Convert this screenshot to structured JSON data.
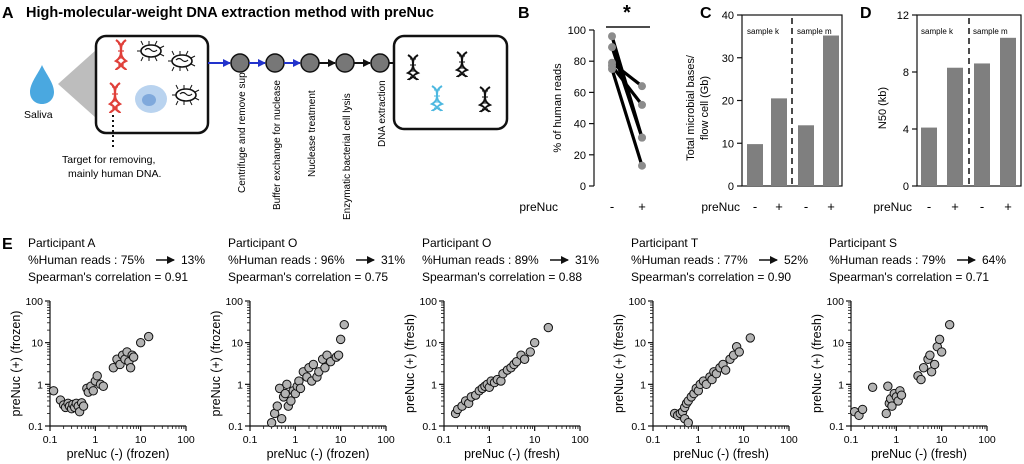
{
  "panelA": {
    "letter": "A",
    "title": "High-molecular-weight DNA extraction method with preNuc",
    "saliva_label": "Saliva",
    "target_label_1": "Target for removing,",
    "target_label_2": "mainly human DNA.",
    "steps": [
      "Centrifuge and remove sup.",
      "Buffer exchange for nuclease",
      "Nuclease treatment",
      "Enzymatic bacterial cell lysis",
      "DNA extraction"
    ],
    "colors": {
      "human_dna": "#e0403a",
      "blue_dna": "#4db8e0",
      "arrow_blue": "#2233cc",
      "node": "#777777",
      "drop": "#4aa8e0"
    }
  },
  "panelB": {
    "letter": "B",
    "significance": "*",
    "ylabel": "% of human reads",
    "xaxis_label": "preNuc",
    "xticks": [
      "-",
      "+"
    ]
  },
  "panelC": {
    "letter": "C",
    "ylabel_1": "Total microbial bases/",
    "ylabel_2": "flow cell (Gb)",
    "xaxis_label": "preNuc",
    "xticks": [
      "-",
      "+",
      "-",
      "+"
    ],
    "groups": [
      "sample k",
      "sample m"
    ]
  },
  "panelD": {
    "letter": "D",
    "ylabel": "N50 (kb)",
    "xaxis_label": "preNuc",
    "xticks": [
      "-",
      "+",
      "-",
      "+"
    ],
    "groups": [
      "sample k",
      "sample m"
    ]
  },
  "panelE": {
    "letter": "E",
    "plots": [
      {
        "participant": "Participant A",
        "reads_before": "%Human reads : 75%",
        "reads_after": "13%",
        "corr": "Spearman's correlation = 0.91",
        "xlabel": "preNuc (-) (frozen)",
        "ylabel": "preNuc (+) (frozen)"
      },
      {
        "participant": "Participant O",
        "reads_before": "%Human reads : 96%",
        "reads_after": "31%",
        "corr": "Spearman's correlation = 0.75",
        "xlabel": "preNuc (-) (frozen)",
        "ylabel": "preNuc (+) (frozen)"
      },
      {
        "participant": "Participant O",
        "reads_before": "%Human reads : 89%",
        "reads_after": "31%",
        "corr": "Spearman's correlation = 0.88",
        "xlabel": "preNuc (-) (fresh)",
        "ylabel": "preNuc (+) (fresh)"
      },
      {
        "participant": "Participant T",
        "reads_before": "%Human reads : 77%",
        "reads_after": "52%",
        "corr": "Spearman's correlation = 0.90",
        "xlabel": "preNuc (-) (fresh)",
        "ylabel": "preNuc (+) (fresh)"
      },
      {
        "participant": "Participant S",
        "reads_before": "%Human reads : 79%",
        "reads_after": "64%",
        "corr": "Spearman's correlation = 0.71",
        "xlabel": "preNuc (-) (fresh)",
        "ylabel": "preNuc (+) (fresh)"
      }
    ]
  },
  "chart_data": [
    {
      "type": "line",
      "panel": "B",
      "ylabel": "% of human reads",
      "xlabel": "preNuc",
      "categories": [
        "-",
        "+"
      ],
      "ylim": [
        0,
        100
      ],
      "yticks": [
        0,
        20,
        40,
        60,
        80,
        100
      ],
      "series": [
        {
          "values": [
            96,
            31
          ]
        },
        {
          "values": [
            89,
            31
          ]
        },
        {
          "values": [
            79,
            64
          ]
        },
        {
          "values": [
            77,
            52
          ]
        },
        {
          "values": [
            75,
            13
          ]
        }
      ],
      "annotation": "*"
    },
    {
      "type": "bar",
      "panel": "C",
      "ylabel": "Total microbial bases/ flow cell (Gb)",
      "xlabel": "preNuc",
      "categories": [
        "-",
        "+",
        "-",
        "+"
      ],
      "groups": [
        "sample k",
        "sample m"
      ],
      "values": [
        9.8,
        20.5,
        14.2,
        35.2
      ],
      "ylim": [
        0,
        40
      ],
      "yticks": [
        0,
        10,
        20,
        30,
        40
      ]
    },
    {
      "type": "bar",
      "panel": "D",
      "ylabel": "N50 (kb)",
      "xlabel": "preNuc",
      "categories": [
        "-",
        "+",
        "-",
        "+"
      ],
      "groups": [
        "sample k",
        "sample m"
      ],
      "values": [
        4.1,
        8.3,
        8.6,
        10.4
      ],
      "ylim": [
        0,
        12
      ],
      "yticks": [
        0,
        4,
        8,
        12
      ]
    },
    {
      "type": "scatter",
      "panel": "E",
      "scale": "log",
      "xlabel": "preNuc (-) (frozen)",
      "ylabel": "preNuc (+) (frozen)",
      "xlim": [
        0.1,
        100
      ],
      "ylim": [
        0.1,
        100
      ],
      "ticks": [
        "0.1",
        "1",
        "10",
        "100"
      ],
      "points": [
        [
          0.12,
          0.7
        ],
        [
          0.17,
          0.42
        ],
        [
          0.2,
          0.32
        ],
        [
          0.22,
          0.28
        ],
        [
          0.25,
          0.35
        ],
        [
          0.27,
          0.3
        ],
        [
          0.3,
          0.26
        ],
        [
          0.32,
          0.33
        ],
        [
          0.35,
          0.28
        ],
        [
          0.38,
          0.35
        ],
        [
          0.42,
          0.3
        ],
        [
          0.45,
          0.22
        ],
        [
          0.5,
          0.36
        ],
        [
          0.55,
          0.3
        ],
        [
          0.65,
          0.8
        ],
        [
          0.7,
          0.65
        ],
        [
          0.8,
          0.9
        ],
        [
          0.9,
          0.7
        ],
        [
          1.0,
          1.2
        ],
        [
          1.1,
          1.6
        ],
        [
          1.3,
          1.0
        ],
        [
          1.5,
          0.9
        ],
        [
          2.5,
          2.5
        ],
        [
          3.0,
          4.0
        ],
        [
          3.5,
          3.0
        ],
        [
          4.0,
          5.0
        ],
        [
          4.5,
          4.0
        ],
        [
          5.0,
          6.0
        ],
        [
          5.5,
          3.5
        ],
        [
          6.0,
          2.5
        ],
        [
          6.5,
          5.0
        ],
        [
          7.0,
          4.5
        ],
        [
          10.0,
          10.0
        ],
        [
          15.0,
          14.0
        ]
      ]
    },
    {
      "type": "scatter",
      "panel": "E",
      "scale": "log",
      "xlabel": "preNuc (-) (frozen)",
      "ylabel": "preNuc (+) (frozen)",
      "xlim": [
        0.1,
        100
      ],
      "ylim": [
        0.1,
        100
      ],
      "ticks": [
        "0.1",
        "1",
        "10",
        "100"
      ],
      "points": [
        [
          0.3,
          0.12
        ],
        [
          0.35,
          0.2
        ],
        [
          0.4,
          0.3
        ],
        [
          0.45,
          0.8
        ],
        [
          0.5,
          0.15
        ],
        [
          0.55,
          0.5
        ],
        [
          0.6,
          0.6
        ],
        [
          0.65,
          1.0
        ],
        [
          0.7,
          0.3
        ],
        [
          0.8,
          0.4
        ],
        [
          0.9,
          0.7
        ],
        [
          1.0,
          0.6
        ],
        [
          1.1,
          0.9
        ],
        [
          1.2,
          1.2
        ],
        [
          1.3,
          0.8
        ],
        [
          1.5,
          2.0
        ],
        [
          1.8,
          1.5
        ],
        [
          2.0,
          2.5
        ],
        [
          2.3,
          1.2
        ],
        [
          2.5,
          3.0
        ],
        [
          3.0,
          1.5
        ],
        [
          3.3,
          2.0
        ],
        [
          4.0,
          4.0
        ],
        [
          4.5,
          2.5
        ],
        [
          5.0,
          5.0
        ],
        [
          6.0,
          3.5
        ],
        [
          8.0,
          4.5
        ],
        [
          9.0,
          5.0
        ],
        [
          10.0,
          12.0
        ],
        [
          12.0,
          27.0
        ]
      ]
    },
    {
      "type": "scatter",
      "panel": "E",
      "scale": "log",
      "xlabel": "preNuc (-) (fresh)",
      "ylabel": "preNuc (+) (fresh)",
      "xlim": [
        0.1,
        100
      ],
      "ylim": [
        0.1,
        100
      ],
      "ticks": [
        "0.1",
        "1",
        "10",
        "100"
      ],
      "points": [
        [
          0.18,
          0.2
        ],
        [
          0.2,
          0.25
        ],
        [
          0.25,
          0.3
        ],
        [
          0.3,
          0.4
        ],
        [
          0.35,
          0.35
        ],
        [
          0.4,
          0.5
        ],
        [
          0.5,
          0.55
        ],
        [
          0.6,
          0.7
        ],
        [
          0.7,
          0.8
        ],
        [
          0.8,
          0.9
        ],
        [
          0.9,
          1.0
        ],
        [
          1.0,
          0.85
        ],
        [
          1.1,
          1.2
        ],
        [
          1.3,
          1.1
        ],
        [
          1.5,
          1.3
        ],
        [
          1.8,
          1.2
        ],
        [
          2.0,
          1.8
        ],
        [
          2.5,
          2.2
        ],
        [
          3.0,
          2.5
        ],
        [
          3.5,
          3.0
        ],
        [
          4.0,
          3.5
        ],
        [
          5.0,
          5.0
        ],
        [
          6.0,
          4.0
        ],
        [
          8.0,
          6.0
        ],
        [
          10.0,
          10.0
        ],
        [
          20.0,
          23.0
        ]
      ]
    },
    {
      "type": "scatter",
      "panel": "E",
      "scale": "log",
      "xlabel": "preNuc (-) (fresh)",
      "ylabel": "preNuc (+) (fresh)",
      "xlim": [
        0.1,
        100
      ],
      "ylim": [
        0.1,
        100
      ],
      "ticks": [
        "0.1",
        "1",
        "10",
        "100"
      ],
      "points": [
        [
          0.3,
          0.2
        ],
        [
          0.35,
          0.18
        ],
        [
          0.4,
          0.2
        ],
        [
          0.45,
          0.22
        ],
        [
          0.5,
          0.15
        ],
        [
          0.5,
          0.28
        ],
        [
          0.55,
          0.35
        ],
        [
          0.6,
          0.12
        ],
        [
          0.6,
          0.4
        ],
        [
          0.7,
          0.5
        ],
        [
          0.8,
          0.6
        ],
        [
          0.9,
          0.8
        ],
        [
          1.0,
          0.7
        ],
        [
          1.1,
          1.0
        ],
        [
          1.3,
          1.2
        ],
        [
          1.5,
          1.0
        ],
        [
          1.8,
          1.5
        ],
        [
          2.0,
          1.3
        ],
        [
          2.2,
          2.0
        ],
        [
          2.5,
          1.8
        ],
        [
          3.0,
          2.5
        ],
        [
          3.5,
          3.0
        ],
        [
          4.0,
          2.2
        ],
        [
          5.0,
          4.0
        ],
        [
          6.0,
          5.0
        ],
        [
          7.0,
          8.0
        ],
        [
          8.0,
          6.0
        ],
        [
          14.0,
          13.0
        ]
      ]
    },
    {
      "type": "scatter",
      "panel": "E",
      "scale": "log",
      "xlabel": "preNuc (-) (fresh)",
      "ylabel": "preNuc (+) (fresh)",
      "xlim": [
        0.1,
        100
      ],
      "ylim": [
        0.1,
        100
      ],
      "ticks": [
        "0.1",
        "1",
        "10",
        "100"
      ],
      "points": [
        [
          0.12,
          0.22
        ],
        [
          0.15,
          0.18
        ],
        [
          0.18,
          0.25
        ],
        [
          0.3,
          0.85
        ],
        [
          0.6,
          0.2
        ],
        [
          0.65,
          0.9
        ],
        [
          0.7,
          0.35
        ],
        [
          0.75,
          0.45
        ],
        [
          0.8,
          0.3
        ],
        [
          0.9,
          0.6
        ],
        [
          1.0,
          0.5
        ],
        [
          1.1,
          0.4
        ],
        [
          1.2,
          0.7
        ],
        [
          1.3,
          0.55
        ],
        [
          3.0,
          1.6
        ],
        [
          3.5,
          1.3
        ],
        [
          4.0,
          2.5
        ],
        [
          5.0,
          4.0
        ],
        [
          5.5,
          5.0
        ],
        [
          6.0,
          2.0
        ],
        [
          7.0,
          3.0
        ],
        [
          8.0,
          8.0
        ],
        [
          9.0,
          12.0
        ],
        [
          10.0,
          6.0
        ],
        [
          15.0,
          27.0
        ]
      ]
    }
  ]
}
